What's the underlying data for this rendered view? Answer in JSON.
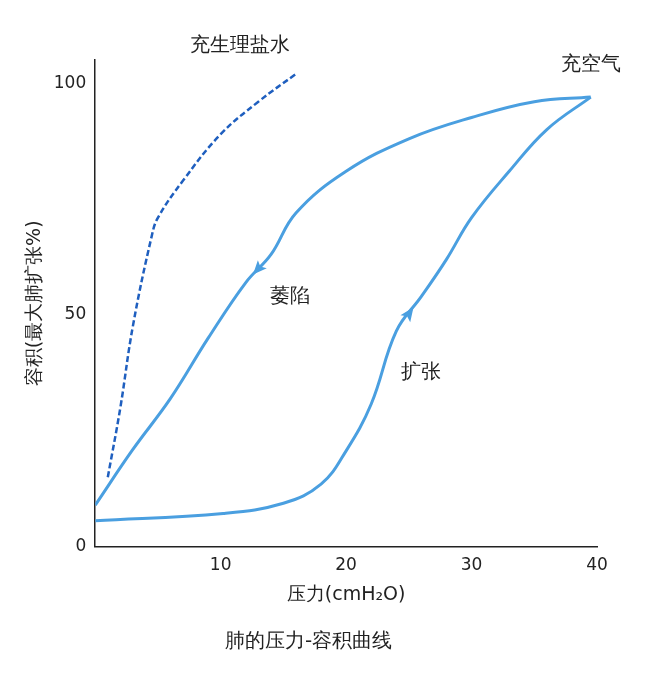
{
  "chart_data": {
    "type": "line",
    "title": "肺的压力-容积曲线",
    "x_label": "压力(cmH₂O)",
    "y_label": "容积(最大肺扩张%)",
    "xlim": [
      0,
      40
    ],
    "xticks": [
      10,
      20,
      30,
      40
    ],
    "ylim": [
      0,
      105
    ],
    "yticks": [
      0,
      50,
      100
    ],
    "grid": false,
    "series": [
      {
        "name": "充生理盐水",
        "color": "#1f5fbf",
        "line_style": "dashed",
        "marker": "none",
        "x": [
          1,
          2,
          3,
          4.5,
          5,
          7,
          10,
          13,
          16
        ],
        "values": [
          15,
          30,
          47.6,
          67,
          71,
          79,
          89,
          96,
          102
        ]
      },
      {
        "name": "扩张",
        "color": "#4a9fe0",
        "line_style": "solid",
        "marker": "arrow",
        "x": [
          0,
          10.2,
          15,
          18,
          20,
          22,
          24,
          26,
          28,
          30,
          33,
          36,
          39.5
        ],
        "values": [
          5.6,
          7.2,
          9.4,
          13.5,
          20.7,
          30.8,
          46.5,
          54,
          62,
          71,
          81,
          90,
          97
        ]
      },
      {
        "name": "萎陷",
        "color": "#4a9fe0",
        "line_style": "solid",
        "marker": "arrow",
        "x": [
          39.5,
          35,
          30,
          25,
          20,
          16,
          14,
          12,
          9,
          6,
          3,
          0
        ],
        "values": [
          97,
          96,
          92.6,
          88,
          81,
          72,
          63,
          57,
          45,
          32,
          21,
          9
        ]
      }
    ],
    "annotations": [
      {
        "text": "充生理盐水",
        "x": 11.5,
        "y": 108
      },
      {
        "text": "充空气",
        "x": 39.5,
        "y": 104
      },
      {
        "text": "萎陷",
        "x": 15.5,
        "y": 54
      },
      {
        "text": "扩张",
        "x": 26,
        "y": 37.5
      }
    ]
  }
}
